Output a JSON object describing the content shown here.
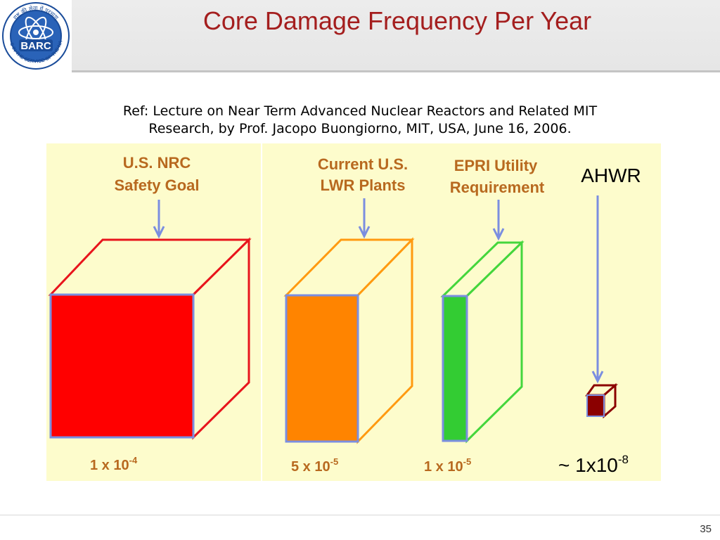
{
  "slide": {
    "title": "Core Damage Frequency Per Year",
    "reference_line1": "Ref: Lecture on Near Term Advanced Nuclear Reactors and Related MIT",
    "reference_line2": "Research, by Prof. Jacopo Buongiorno,  MIT, USA, June 16, 2006.",
    "slide_number": "35"
  },
  "logo": {
    "text": "BARC",
    "ring_text": "ATOMS IN THE SERVICE OF THE NATION",
    "top_text": "राष्ट्र की सेवा में परमाणु"
  },
  "diagram": {
    "colors": {
      "background": "#fdfccc",
      "red": "#ff0000",
      "red_outline": "#e8141c",
      "orange": "#ff8400",
      "orange_outline": "#ff9a10",
      "green": "#33cc33",
      "green_outline": "#44d63c",
      "dark_red": "#8b0000",
      "arrow": "#7b8ee0",
      "label": "#b8691f"
    },
    "items": [
      {
        "heading_line1": "U.S. NRC",
        "heading_line2": "Safety Goal",
        "value_base": "1 x 10",
        "value_exp": "-4"
      },
      {
        "heading_line1": "Current U.S.",
        "heading_line2": "LWR Plants",
        "value_base": "5 x 10",
        "value_exp": "-5"
      },
      {
        "heading_line1": "EPRI Utility",
        "heading_line2": "Requirement",
        "value_base": "1 x 10",
        "value_exp": "-5"
      },
      {
        "heading_line1": "AHWR",
        "value_base": "~ 1x10",
        "value_exp": "-8"
      }
    ]
  }
}
